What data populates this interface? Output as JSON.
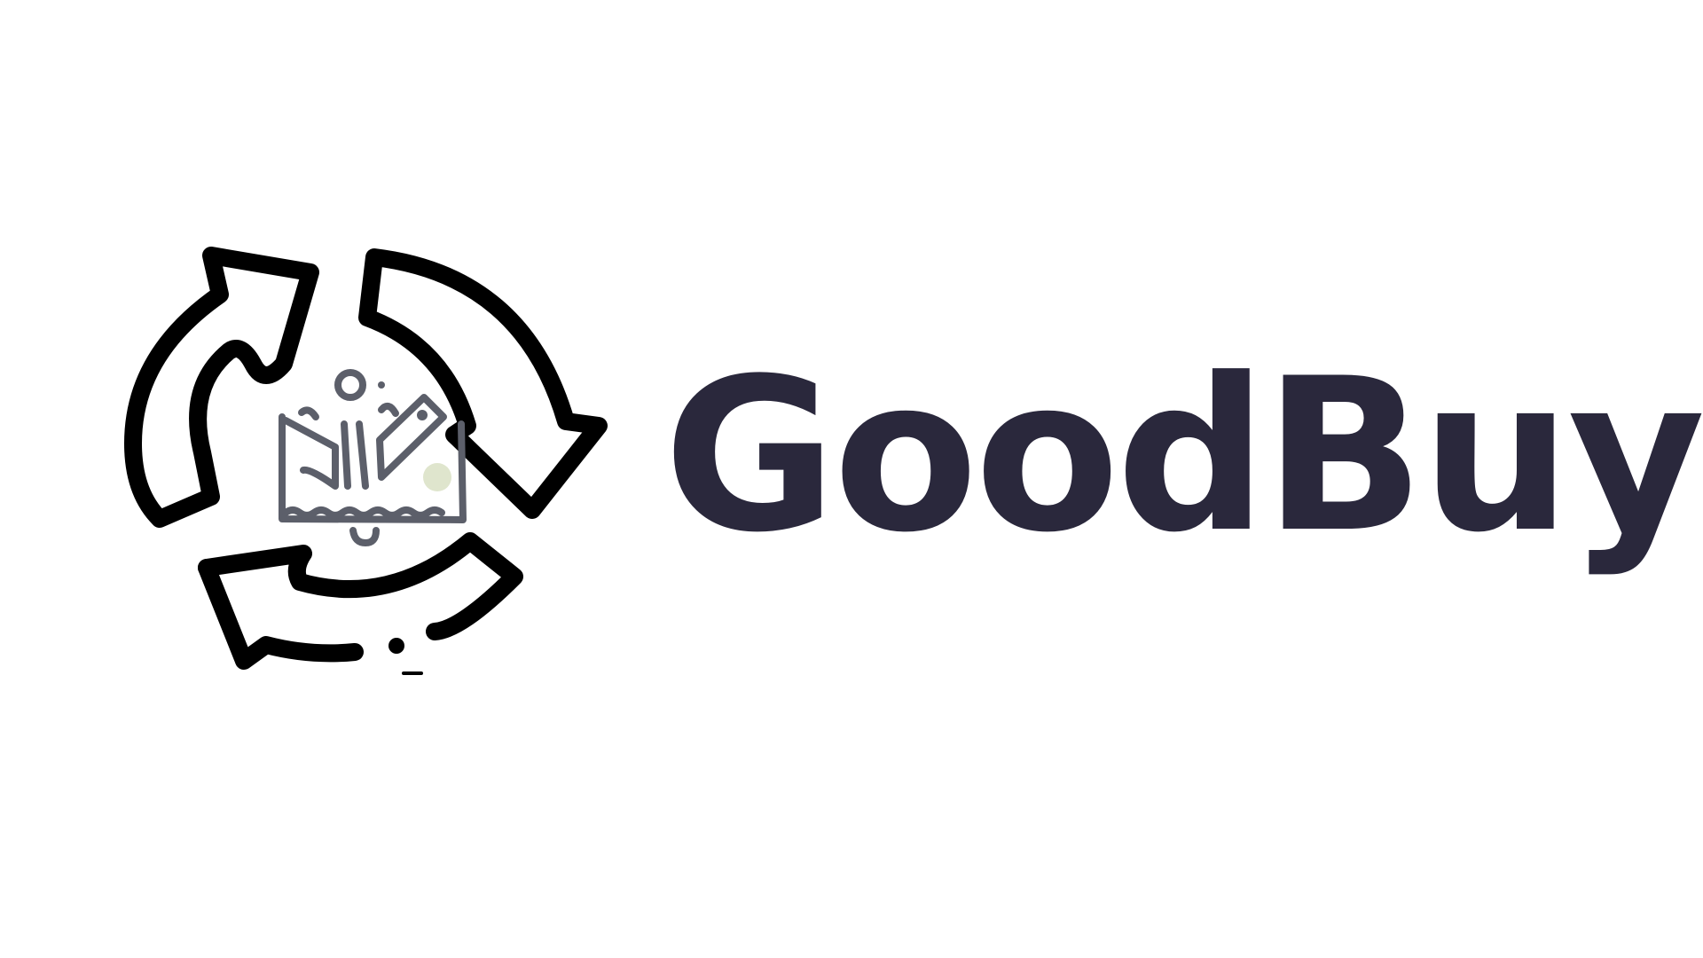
{
  "brand": {
    "name": "GoodBuy",
    "text_color": "#2a283c",
    "emblem_stroke_color": "#000000",
    "emblem_icon_color": "#5c5f6a",
    "emblem_accent_color": "#dfe5cd",
    "background_color": "#ffffff"
  },
  "emblem": {
    "icon": "recycle-arrows-icon",
    "inner_icon": "donation-box-icon"
  }
}
